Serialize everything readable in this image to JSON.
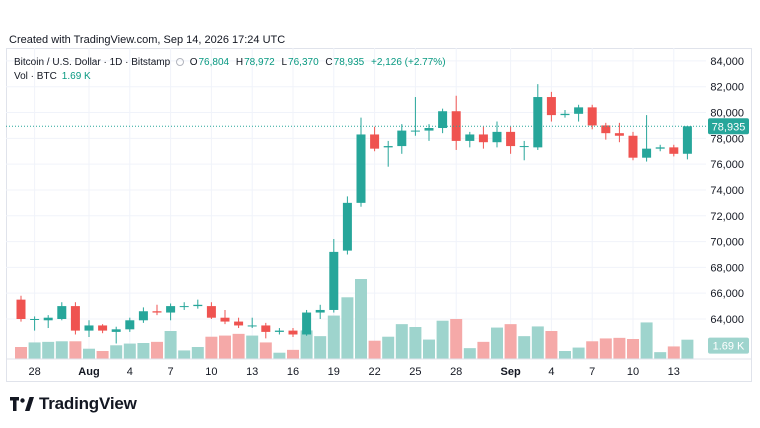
{
  "caption": "Created with TradingView.com, Sep 14, 2026 17:24 UTC",
  "legend": {
    "symbol": "Bitcoin / U.S. Dollar · 1D · Bitstamp",
    "o_label": "O",
    "o": "76,804",
    "h_label": "H",
    "h": "78,972",
    "l_label": "L",
    "l": "76,370",
    "c_label": "C",
    "c": "78,935",
    "change": "+2,126 (+2.77%)",
    "vol_label": "Vol · BTC",
    "vol_value": "1.69 K"
  },
  "logo": {
    "text": "TradingView",
    "icon": "tradingview-logo-icon"
  },
  "colors": {
    "up": "#26a69a",
    "down": "#ef5350",
    "up_volume": "#9ed4cd",
    "down_volume": "#f5a9a8",
    "last_price": "#26a69a",
    "grid": "#f0f3fa",
    "text": "#131722"
  },
  "chart_data": {
    "type": "candlestick",
    "price_axis": {
      "ticks": [
        84000,
        82000,
        80000,
        78000,
        76000,
        74000,
        72000,
        70000,
        68000,
        66000,
        64000
      ],
      "tick_labels": [
        "84,000",
        "82,000",
        "80,000",
        "78,000",
        "76,000",
        "74,000",
        "72,000",
        "70,000",
        "68,000",
        "66,000",
        "64,000"
      ],
      "ylim": [
        60900,
        85000
      ]
    },
    "last_price_label": "78,935",
    "volume_label": "1.69 K",
    "time_axis": {
      "labels": [
        "28",
        "Aug",
        "4",
        "7",
        "10",
        "13",
        "16",
        "19",
        "22",
        "25",
        "28",
        "Sep",
        "4",
        "7",
        "10",
        "13"
      ],
      "label_dates": [
        "07-28",
        "08-01",
        "08-04",
        "08-07",
        "08-10",
        "08-13",
        "08-16",
        "08-19",
        "08-22",
        "08-25",
        "08-28",
        "09-01",
        "09-04",
        "09-07",
        "09-10",
        "09-13"
      ]
    },
    "candles": [
      {
        "date": "07-27",
        "o": 65500,
        "h": 65800,
        "l": 63800,
        "c": 64000,
        "v": 1.05
      },
      {
        "date": "07-28",
        "o": 64000,
        "h": 64200,
        "l": 63100,
        "c": 64000,
        "v": 1.45
      },
      {
        "date": "07-29",
        "o": 63900,
        "h": 64300,
        "l": 63300,
        "c": 64100,
        "v": 1.5
      },
      {
        "date": "07-30",
        "o": 64000,
        "h": 65300,
        "l": 63900,
        "c": 65000,
        "v": 1.55
      },
      {
        "date": "07-31",
        "o": 65000,
        "h": 65300,
        "l": 62800,
        "c": 63100,
        "v": 1.55
      },
      {
        "date": "08-01",
        "o": 63100,
        "h": 63900,
        "l": 62600,
        "c": 63500,
        "v": 0.9
      },
      {
        "date": "08-02",
        "o": 63500,
        "h": 63600,
        "l": 62900,
        "c": 63100,
        "v": 0.7
      },
      {
        "date": "08-03",
        "o": 63000,
        "h": 63400,
        "l": 62100,
        "c": 63200,
        "v": 1.2
      },
      {
        "date": "08-04",
        "o": 63200,
        "h": 64100,
        "l": 63000,
        "c": 63900,
        "v": 1.35
      },
      {
        "date": "08-05",
        "o": 63900,
        "h": 64900,
        "l": 63700,
        "c": 64600,
        "v": 1.4
      },
      {
        "date": "08-06",
        "o": 64600,
        "h": 65100,
        "l": 64300,
        "c": 64500,
        "v": 1.5
      },
      {
        "date": "08-07",
        "o": 64500,
        "h": 65200,
        "l": 63900,
        "c": 65000,
        "v": 2.45
      },
      {
        "date": "08-08",
        "o": 65000,
        "h": 65300,
        "l": 64700,
        "c": 65000,
        "v": 0.75
      },
      {
        "date": "08-09",
        "o": 65000,
        "h": 65500,
        "l": 64800,
        "c": 65100,
        "v": 1.05
      },
      {
        "date": "08-10",
        "o": 65000,
        "h": 65300,
        "l": 64000,
        "c": 64100,
        "v": 1.95
      },
      {
        "date": "08-11",
        "o": 64100,
        "h": 64700,
        "l": 63600,
        "c": 63800,
        "v": 2.05
      },
      {
        "date": "08-12",
        "o": 63800,
        "h": 64100,
        "l": 63300,
        "c": 63500,
        "v": 2.2
      },
      {
        "date": "08-13",
        "o": 63500,
        "h": 64100,
        "l": 63300,
        "c": 63500,
        "v": 2.05
      },
      {
        "date": "08-14",
        "o": 63500,
        "h": 63700,
        "l": 62500,
        "c": 63000,
        "v": 1.45
      },
      {
        "date": "08-15",
        "o": 63000,
        "h": 63300,
        "l": 62800,
        "c": 63100,
        "v": 0.55
      },
      {
        "date": "08-16",
        "o": 63100,
        "h": 63300,
        "l": 62600,
        "c": 62800,
        "v": 0.8
      },
      {
        "date": "08-17",
        "o": 62800,
        "h": 64700,
        "l": 62700,
        "c": 64500,
        "v": 2.5
      },
      {
        "date": "08-18",
        "o": 64500,
        "h": 65100,
        "l": 64000,
        "c": 64700,
        "v": 2.0
      },
      {
        "date": "08-19",
        "o": 64700,
        "h": 70200,
        "l": 64500,
        "c": 69200,
        "v": 3.8
      },
      {
        "date": "08-20",
        "o": 69300,
        "h": 73500,
        "l": 69000,
        "c": 73000,
        "v": 5.4
      },
      {
        "date": "08-21",
        "o": 73000,
        "h": 79600,
        "l": 72700,
        "c": 78300,
        "v": 7.0
      },
      {
        "date": "08-22",
        "o": 78300,
        "h": 78900,
        "l": 77000,
        "c": 77200,
        "v": 1.6
      },
      {
        "date": "08-23",
        "o": 77300,
        "h": 77800,
        "l": 75800,
        "c": 77400,
        "v": 1.95
      },
      {
        "date": "08-24",
        "o": 77400,
        "h": 79100,
        "l": 76800,
        "c": 78600,
        "v": 3.05
      },
      {
        "date": "08-25",
        "o": 78600,
        "h": 81200,
        "l": 78200,
        "c": 78600,
        "v": 2.8
      },
      {
        "date": "08-26",
        "o": 78600,
        "h": 79100,
        "l": 77800,
        "c": 78800,
        "v": 1.7
      },
      {
        "date": "08-27",
        "o": 78800,
        "h": 80300,
        "l": 78400,
        "c": 80100,
        "v": 3.35
      },
      {
        "date": "08-28",
        "o": 80100,
        "h": 81300,
        "l": 77100,
        "c": 77800,
        "v": 3.5
      },
      {
        "date": "08-29",
        "o": 77800,
        "h": 78500,
        "l": 77300,
        "c": 78300,
        "v": 0.95
      },
      {
        "date": "08-30",
        "o": 78300,
        "h": 78900,
        "l": 77200,
        "c": 77700,
        "v": 1.5
      },
      {
        "date": "08-31",
        "o": 77700,
        "h": 79300,
        "l": 77300,
        "c": 78500,
        "v": 2.75
      },
      {
        "date": "09-01",
        "o": 78500,
        "h": 78900,
        "l": 76800,
        "c": 77400,
        "v": 3.05
      },
      {
        "date": "09-02",
        "o": 77400,
        "h": 77800,
        "l": 76300,
        "c": 77400,
        "v": 2.0
      },
      {
        "date": "09-03",
        "o": 77300,
        "h": 82200,
        "l": 77100,
        "c": 81200,
        "v": 2.85
      },
      {
        "date": "09-04",
        "o": 81200,
        "h": 81600,
        "l": 79300,
        "c": 79800,
        "v": 2.45
      },
      {
        "date": "09-05",
        "o": 79800,
        "h": 80200,
        "l": 79600,
        "c": 79900,
        "v": 0.7
      },
      {
        "date": "09-06",
        "o": 79900,
        "h": 80600,
        "l": 79300,
        "c": 80400,
        "v": 1.0
      },
      {
        "date": "09-07",
        "o": 80400,
        "h": 80600,
        "l": 78700,
        "c": 79000,
        "v": 1.55
      },
      {
        "date": "09-08",
        "o": 79000,
        "h": 79200,
        "l": 77900,
        "c": 78400,
        "v": 1.8
      },
      {
        "date": "09-09",
        "o": 78400,
        "h": 79200,
        "l": 77700,
        "c": 78200,
        "v": 1.85
      },
      {
        "date": "09-10",
        "o": 78200,
        "h": 78500,
        "l": 76300,
        "c": 76500,
        "v": 1.75
      },
      {
        "date": "09-11",
        "o": 76500,
        "h": 79800,
        "l": 76200,
        "c": 77200,
        "v": 3.2
      },
      {
        "date": "09-12",
        "o": 77200,
        "h": 77500,
        "l": 77000,
        "c": 77300,
        "v": 0.6
      },
      {
        "date": "09-13",
        "o": 77300,
        "h": 77500,
        "l": 76600,
        "c": 76800,
        "v": 1.1
      },
      {
        "date": "09-14",
        "o": 76804,
        "h": 78972,
        "l": 76370,
        "c": 78935,
        "v": 1.69
      }
    ]
  }
}
